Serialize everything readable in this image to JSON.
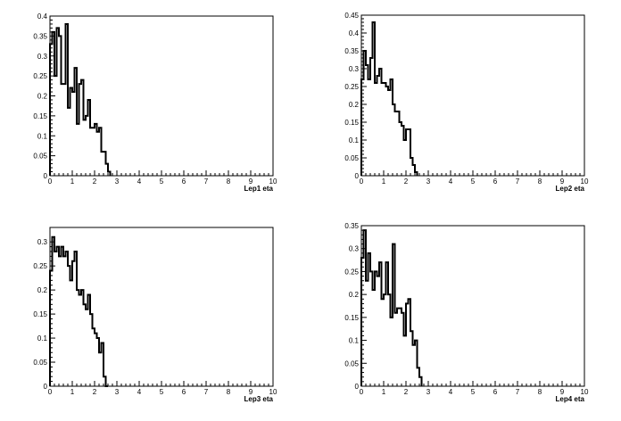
{
  "chart_data": [
    {
      "type": "histogram",
      "xlabel": "Lep1 eta",
      "ylabel": "",
      "xlim": [
        0,
        10
      ],
      "ylim": [
        0,
        0.4
      ],
      "x_ticks": [
        "0",
        "1",
        "2",
        "3",
        "4",
        "5",
        "6",
        "7",
        "8",
        "9",
        "10"
      ],
      "y_ticks": [
        "0",
        "0.05",
        "0.1",
        "0.15",
        "0.2",
        "0.25",
        "0.3",
        "0.35",
        "0.4"
      ],
      "bin_width": 0.1,
      "values": [
        0.33,
        0.36,
        0.25,
        0.37,
        0.35,
        0.23,
        0.23,
        0.38,
        0.17,
        0.22,
        0.21,
        0.27,
        0.13,
        0.23,
        0.24,
        0.14,
        0.15,
        0.19,
        0.12,
        0.12,
        0.13,
        0.11,
        0.12,
        0.06,
        0.06,
        0.03,
        0.01
      ]
    },
    {
      "type": "histogram",
      "xlabel": "Lep2 eta",
      "ylabel": "",
      "xlim": [
        0,
        10
      ],
      "ylim": [
        0,
        0.45
      ],
      "x_ticks": [
        "0",
        "1",
        "2",
        "3",
        "4",
        "5",
        "6",
        "7",
        "8",
        "9",
        "10"
      ],
      "y_ticks": [
        "0",
        "0.05",
        "0.1",
        "0.15",
        "0.2",
        "0.25",
        "0.3",
        "0.35",
        "0.4",
        "0.45"
      ],
      "bin_width": 0.1,
      "values": [
        0.27,
        0.35,
        0.31,
        0.27,
        0.33,
        0.43,
        0.26,
        0.28,
        0.3,
        0.26,
        0.26,
        0.25,
        0.24,
        0.27,
        0.2,
        0.18,
        0.18,
        0.15,
        0.14,
        0.1,
        0.13,
        0.13,
        0.05,
        0.03,
        0.01
      ]
    },
    {
      "type": "histogram",
      "xlabel": "Lep3 eta",
      "ylabel": "",
      "xlim": [
        0,
        10
      ],
      "ylim": [
        0,
        0.33
      ],
      "x_ticks": [
        "0",
        "1",
        "2",
        "3",
        "4",
        "5",
        "6",
        "7",
        "8",
        "9",
        "10"
      ],
      "y_ticks": [
        "0",
        "0.05",
        "0.1",
        "0.15",
        "0.2",
        "0.25",
        "0.3"
      ],
      "bin_width": 0.1,
      "values": [
        0.24,
        0.31,
        0.28,
        0.29,
        0.27,
        0.29,
        0.27,
        0.28,
        0.25,
        0.22,
        0.26,
        0.28,
        0.2,
        0.19,
        0.2,
        0.17,
        0.16,
        0.19,
        0.15,
        0.12,
        0.11,
        0.1,
        0.07,
        0.09,
        0.02,
        0.0
      ]
    },
    {
      "type": "histogram",
      "xlabel": "Lep4 eta",
      "ylabel": "",
      "xlim": [
        0,
        10
      ],
      "ylim": [
        0,
        0.35
      ],
      "x_ticks": [
        "0",
        "1",
        "2",
        "3",
        "4",
        "5",
        "6",
        "7",
        "8",
        "9",
        "10"
      ],
      "y_ticks": [
        "0",
        "0.05",
        "0.1",
        "0.15",
        "0.2",
        "0.25",
        "0.3",
        "0.35"
      ],
      "bin_width": 0.1,
      "values": [
        0.28,
        0.34,
        0.23,
        0.29,
        0.25,
        0.21,
        0.25,
        0.24,
        0.27,
        0.19,
        0.2,
        0.27,
        0.2,
        0.15,
        0.31,
        0.16,
        0.17,
        0.17,
        0.16,
        0.11,
        0.18,
        0.19,
        0.12,
        0.09,
        0.1,
        0.04,
        0.02
      ]
    }
  ]
}
